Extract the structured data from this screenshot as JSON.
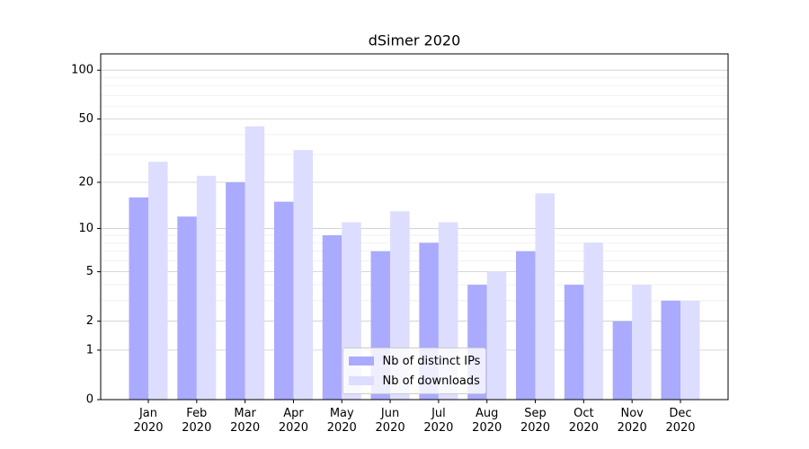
{
  "chart_data": {
    "type": "bar",
    "title": "dSimer 2020",
    "categories": [
      "Jan 2020",
      "Feb 2020",
      "Mar 2020",
      "Apr 2020",
      "May 2020",
      "Jun 2020",
      "Jul 2020",
      "Aug 2020",
      "Sep 2020",
      "Oct 2020",
      "Nov 2020",
      "Dec 2020"
    ],
    "series": [
      {
        "name": "Nb of distinct IPs",
        "color": "#aaaaff",
        "values": [
          16,
          12,
          20,
          15,
          9,
          7,
          8,
          4,
          7,
          4,
          2,
          3
        ]
      },
      {
        "name": "Nb of downloads",
        "color": "#ddddff",
        "values": [
          27,
          22,
          45,
          32,
          11,
          13,
          11,
          5,
          17,
          8,
          4,
          3
        ]
      }
    ],
    "yscale": "log1p",
    "ylim": [
      0,
      126
    ],
    "yticks": [
      0,
      1,
      2,
      5,
      10,
      20,
      50,
      100
    ],
    "yminorticks": [
      3,
      4,
      6,
      7,
      8,
      9,
      30,
      40,
      60,
      70,
      80,
      90
    ],
    "grid": true,
    "legend": "lower center"
  }
}
